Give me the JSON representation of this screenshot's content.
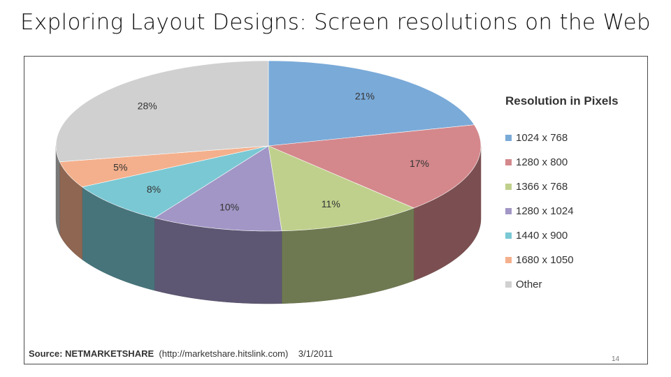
{
  "slide": {
    "title": "Exploring Layout Designs: Screen resolutions on the Web",
    "page_number": "14"
  },
  "chart_data": {
    "type": "pie",
    "style": "3d",
    "legend_title": "Resolution in Pixels",
    "legend_position": "right",
    "slices": [
      {
        "label": "1024 x 768",
        "value": 21,
        "data_label": "21%",
        "color": "#7aaad8"
      },
      {
        "label": "1280 x 800",
        "value": 17,
        "data_label": "17%",
        "color": "#d4888c"
      },
      {
        "label": "1366 x 768",
        "value": 11,
        "data_label": "11%",
        "color": "#bfd08c"
      },
      {
        "label": "1280 x 1024",
        "value": 10,
        "data_label": "10%",
        "color": "#a296c6"
      },
      {
        "label": "1440 x 900",
        "value": 8,
        "data_label": "8%",
        "color": "#7ac8d4"
      },
      {
        "label": "1680 x 1050",
        "value": 5,
        "data_label": "5%",
        "color": "#f4b08c"
      },
      {
        "label": "Other",
        "value": 28,
        "data_label": "28%",
        "color": "#d0d0d0"
      }
    ],
    "source": {
      "prefix": "Source:",
      "name": "NETMARKETSHARE",
      "url": "(http://marketshare.hitslink.com)",
      "date": "3/1/2011"
    }
  }
}
